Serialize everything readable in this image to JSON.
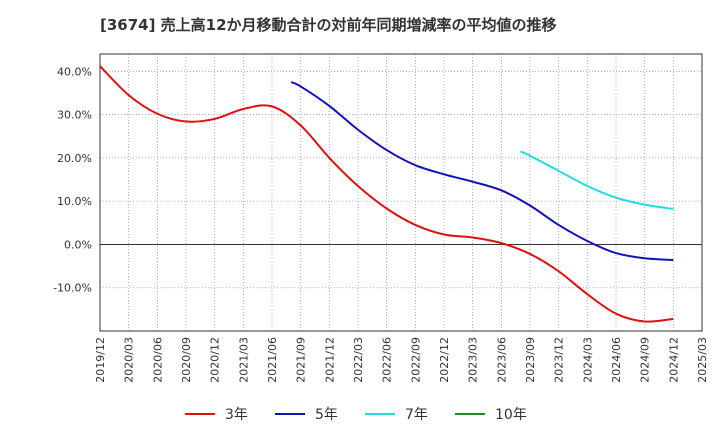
{
  "chart_data": {
    "type": "line",
    "title": "[3674]  売上高12か月移動合計の対前年同期増減率の平均値の推移",
    "xlabel": "",
    "ylabel": "",
    "ylim": [
      -20,
      44
    ],
    "xlim": [
      "2019/12",
      "2025/03"
    ],
    "y_ticks": [
      -10,
      0,
      10,
      20,
      30,
      40
    ],
    "y_tick_labels": [
      "-10.0%",
      "0.0%",
      "10.0%",
      "20.0%",
      "30.0%",
      "40.0%"
    ],
    "x_tick_labels": [
      "2019/12",
      "2020/03",
      "2020/06",
      "2020/09",
      "2020/12",
      "2021/03",
      "2021/06",
      "2021/09",
      "2021/12",
      "2022/03",
      "2022/06",
      "2022/09",
      "2022/12",
      "2023/03",
      "2023/06",
      "2023/09",
      "2023/12",
      "2024/03",
      "2024/06",
      "2024/09",
      "2024/12",
      "2025/03"
    ],
    "grid": true,
    "legend_position": "bottom",
    "series": [
      {
        "name": "3年",
        "color": "#dd1111",
        "points": [
          [
            "2019/12",
            41.2
          ],
          [
            "2020/03",
            34.5
          ],
          [
            "2020/06",
            30.2
          ],
          [
            "2020/09",
            28.4
          ],
          [
            "2020/12",
            29.0
          ],
          [
            "2021/03",
            31.3
          ],
          [
            "2021/06",
            31.9
          ],
          [
            "2021/09",
            27.5
          ],
          [
            "2021/12",
            20.0
          ],
          [
            "2022/03",
            13.5
          ],
          [
            "2022/06",
            8.3
          ],
          [
            "2022/09",
            4.5
          ],
          [
            "2022/12",
            2.3
          ],
          [
            "2023/03",
            1.6
          ],
          [
            "2023/06",
            0.3
          ],
          [
            "2023/09",
            -2.2
          ],
          [
            "2023/12",
            -6.2
          ],
          [
            "2024/03",
            -11.5
          ],
          [
            "2024/06",
            -16.0
          ],
          [
            "2024/09",
            -17.8
          ],
          [
            "2024/12",
            -17.2
          ]
        ]
      },
      {
        "name": "5年",
        "color": "#1111bb",
        "points": [
          [
            "2021/08",
            37.5
          ],
          [
            "2021/09",
            36.5
          ],
          [
            "2021/12",
            32.0
          ],
          [
            "2022/03",
            26.5
          ],
          [
            "2022/06",
            21.8
          ],
          [
            "2022/09",
            18.3
          ],
          [
            "2022/12",
            16.2
          ],
          [
            "2023/03",
            14.5
          ],
          [
            "2023/06",
            12.5
          ],
          [
            "2023/09",
            9.0
          ],
          [
            "2023/12",
            4.5
          ],
          [
            "2024/03",
            0.8
          ],
          [
            "2024/06",
            -2.0
          ],
          [
            "2024/09",
            -3.2
          ],
          [
            "2024/12",
            -3.6
          ]
        ]
      },
      {
        "name": "7年",
        "color": "#22dddd",
        "points": [
          [
            "2023/08",
            21.5
          ],
          [
            "2023/09",
            20.5
          ],
          [
            "2023/12",
            17.0
          ],
          [
            "2024/03",
            13.5
          ],
          [
            "2024/06",
            10.8
          ],
          [
            "2024/09",
            9.2
          ],
          [
            "2024/12",
            8.2
          ]
        ]
      },
      {
        "name": "10年",
        "color": "#228822",
        "points": []
      }
    ]
  }
}
